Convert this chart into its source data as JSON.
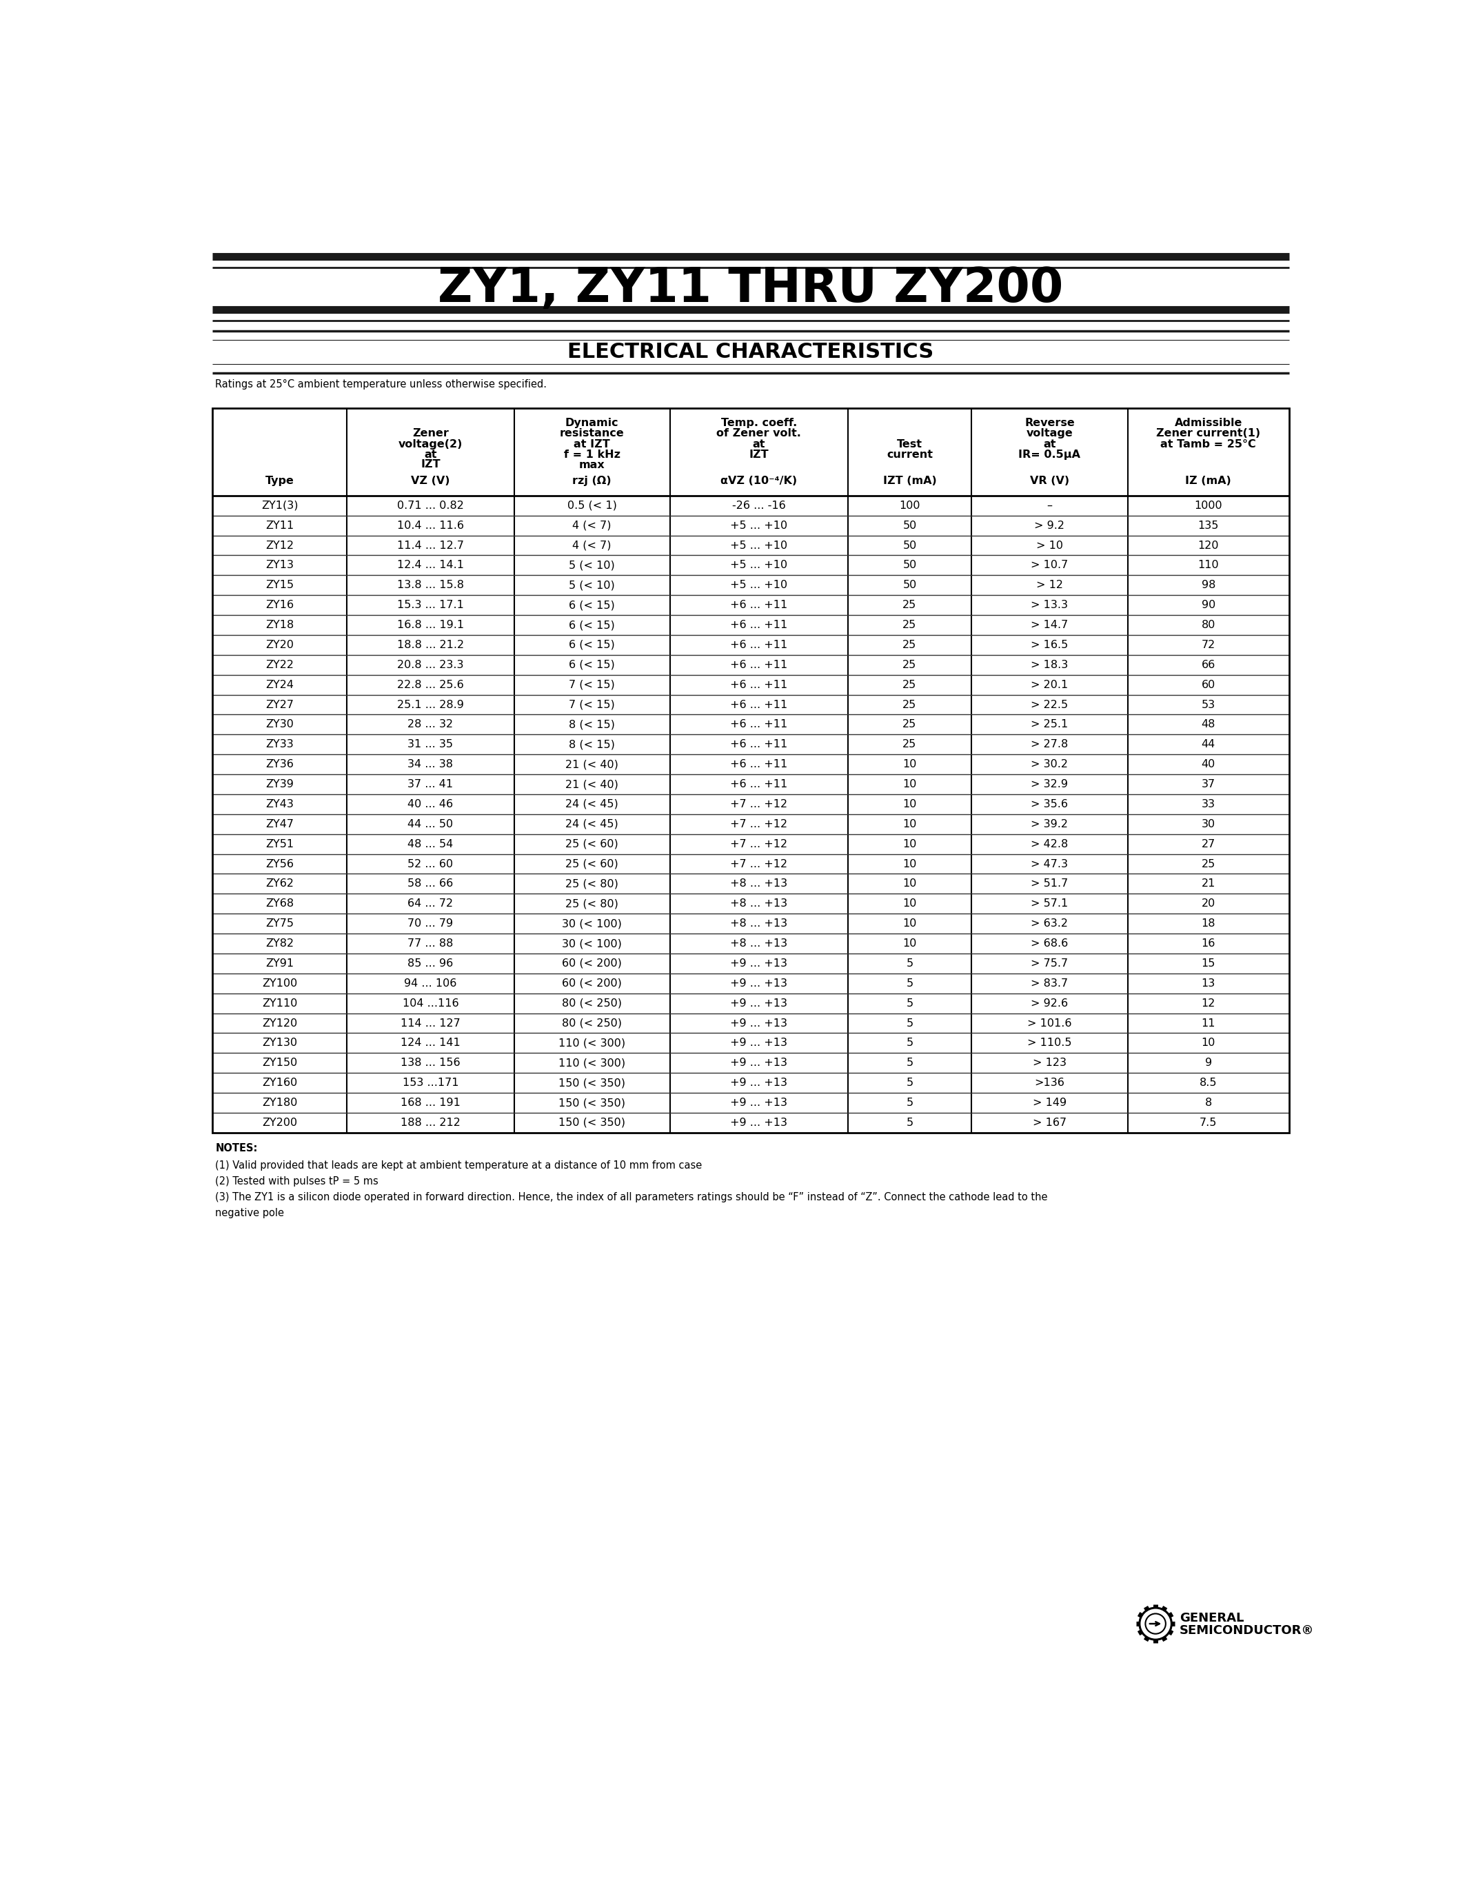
{
  "title": "ZY1, ZY11 THRU ZY200",
  "subtitle": "ELECTRICAL CHARACTERISTICS",
  "ratings_text": "Ratings at 25°C ambient temperature unless otherwise specified.",
  "table_data": [
    [
      "ZY1(3)",
      "0.71 ... 0.82",
      "0.5 (< 1)",
      "-26 ... -16",
      "100",
      "–",
      "1000"
    ],
    [
      "ZY11",
      "10.4 ... 11.6",
      "4 (< 7)",
      "+5 ... +10",
      "50",
      "> 9.2",
      "135"
    ],
    [
      "ZY12",
      "11.4 ... 12.7",
      "4 (< 7)",
      "+5 ... +10",
      "50",
      "> 10",
      "120"
    ],
    [
      "ZY13",
      "12.4 ... 14.1",
      "5 (< 10)",
      "+5 ... +10",
      "50",
      "> 10.7",
      "110"
    ],
    [
      "ZY15",
      "13.8 ... 15.8",
      "5 (< 10)",
      "+5 ... +10",
      "50",
      "> 12",
      "98"
    ],
    [
      "ZY16",
      "15.3 ... 17.1",
      "6 (< 15)",
      "+6 ... +11",
      "25",
      "> 13.3",
      "90"
    ],
    [
      "ZY18",
      "16.8 ... 19.1",
      "6 (< 15)",
      "+6 ... +11",
      "25",
      "> 14.7",
      "80"
    ],
    [
      "ZY20",
      "18.8 ... 21.2",
      "6 (< 15)",
      "+6 ... +11",
      "25",
      "> 16.5",
      "72"
    ],
    [
      "ZY22",
      "20.8 ... 23.3",
      "6 (< 15)",
      "+6 ... +11",
      "25",
      "> 18.3",
      "66"
    ],
    [
      "ZY24",
      "22.8 ... 25.6",
      "7 (< 15)",
      "+6 ... +11",
      "25",
      "> 20.1",
      "60"
    ],
    [
      "ZY27",
      "25.1 ... 28.9",
      "7 (< 15)",
      "+6 ... +11",
      "25",
      "> 22.5",
      "53"
    ],
    [
      "ZY30",
      "28 ... 32",
      "8 (< 15)",
      "+6 ... +11",
      "25",
      "> 25.1",
      "48"
    ],
    [
      "ZY33",
      "31 ... 35",
      "8 (< 15)",
      "+6 ... +11",
      "25",
      "> 27.8",
      "44"
    ],
    [
      "ZY36",
      "34 ... 38",
      "21 (< 40)",
      "+6 ... +11",
      "10",
      "> 30.2",
      "40"
    ],
    [
      "ZY39",
      "37 ... 41",
      "21 (< 40)",
      "+6 ... +11",
      "10",
      "> 32.9",
      "37"
    ],
    [
      "ZY43",
      "40 ... 46",
      "24 (< 45)",
      "+7 ... +12",
      "10",
      "> 35.6",
      "33"
    ],
    [
      "ZY47",
      "44 ... 50",
      "24 (< 45)",
      "+7 ... +12",
      "10",
      "> 39.2",
      "30"
    ],
    [
      "ZY51",
      "48 ... 54",
      "25 (< 60)",
      "+7 ... +12",
      "10",
      "> 42.8",
      "27"
    ],
    [
      "ZY56",
      "52 ... 60",
      "25 (< 60)",
      "+7 ... +12",
      "10",
      "> 47.3",
      "25"
    ],
    [
      "ZY62",
      "58 ... 66",
      "25 (< 80)",
      "+8 ... +13",
      "10",
      "> 51.7",
      "21"
    ],
    [
      "ZY68",
      "64 ... 72",
      "25 (< 80)",
      "+8 ... +13",
      "10",
      "> 57.1",
      "20"
    ],
    [
      "ZY75",
      "70 ... 79",
      "30 (< 100)",
      "+8 ... +13",
      "10",
      "> 63.2",
      "18"
    ],
    [
      "ZY82",
      "77 ... 88",
      "30 (< 100)",
      "+8 ... +13",
      "10",
      "> 68.6",
      "16"
    ],
    [
      "ZY91",
      "85 ... 96",
      "60 (< 200)",
      "+9 ... +13",
      "5",
      "> 75.7",
      "15"
    ],
    [
      "ZY100",
      "94 ... 106",
      "60 (< 200)",
      "+9 ... +13",
      "5",
      "> 83.7",
      "13"
    ],
    [
      "ZY110",
      "104 ...116",
      "80 (< 250)",
      "+9 ... +13",
      "5",
      "> 92.6",
      "12"
    ],
    [
      "ZY120",
      "114 ... 127",
      "80 (< 250)",
      "+9 ... +13",
      "5",
      "> 101.6",
      "11"
    ],
    [
      "ZY130",
      "124 ... 141",
      "110 (< 300)",
      "+9 ... +13",
      "5",
      "> 110.5",
      "10"
    ],
    [
      "ZY150",
      "138 ... 156",
      "110 (< 300)",
      "+9 ... +13",
      "5",
      "> 123",
      "9"
    ],
    [
      "ZY160",
      "153 ...171",
      "150 (< 350)",
      "+9 ... +13",
      "5",
      ">136",
      "8.5"
    ],
    [
      "ZY180",
      "168 ... 191",
      "150 (< 350)",
      "+9 ... +13",
      "5",
      "> 149",
      "8"
    ],
    [
      "ZY200",
      "188 ... 212",
      "150 (< 350)",
      "+9 ... +13",
      "5",
      "> 167",
      "7.5"
    ]
  ],
  "note1": "(1) Valid provided that leads are kept at ambient temperature at a distance of 10 mm from case",
  "note2": "(2) Tested with pulses tP = 5 ms",
  "note3": "(3) The ZY1 is a silicon diode operated in forward direction. Hence, the index of all parameters ratings should be “F” instead of “Z”. Connect the cathode lead to the",
  "note3b": "negative pole",
  "bg_color": "#ffffff",
  "text_color": "#000000",
  "bar_color": "#1a1a1a",
  "border_color": "#000000",
  "row_line_color": "#333333"
}
